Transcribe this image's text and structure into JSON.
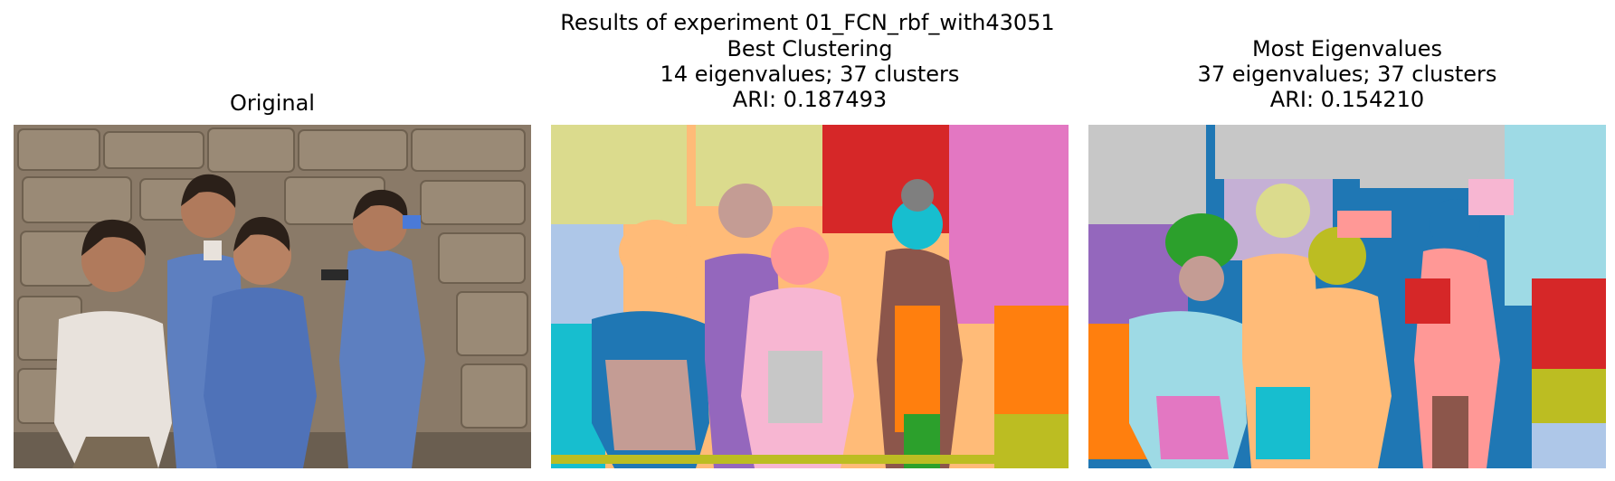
{
  "figure": {
    "suptitle": "Results of experiment 01_FCN_rbf_with43051"
  },
  "panels": [
    {
      "id": "original",
      "title_lines": [
        "Original"
      ],
      "image": "photo of four boys in blue school uniforms in front of a stone wall"
    },
    {
      "id": "best-clustering",
      "title_lines": [
        "Best Clustering",
        "14 eigenvalues; 37 clusters",
        "ARI: 0.187493"
      ],
      "image": "segmentation map"
    },
    {
      "id": "most-eigenvalues",
      "title_lines": [
        "Most Eigenvalues",
        "37 eigenvalues; 37 clusters",
        "ARI: 0.154210"
      ],
      "image": "segmentation map"
    }
  ],
  "colors": {
    "wall": "#8a7a68",
    "shirt": "#5d7fc0",
    "skin": "#b07a5c",
    "white": "#e8e2dc",
    "c_orange": "#ff7f0e",
    "c_lightorange": "#ffbb78",
    "c_blue": "#1f77b4",
    "c_lightblue": "#aec7e8",
    "c_green": "#2ca02c",
    "c_red": "#d62728",
    "c_pink": "#ff9896",
    "c_purple": "#9467bd",
    "c_lavender": "#c5b0d5",
    "c_brown": "#8c564b",
    "c_tan": "#c49c94",
    "c_magenta": "#e377c2",
    "c_lightpink": "#f7b6d2",
    "c_gray": "#c7c7c7",
    "c_olive": "#bcbd22",
    "c_khaki": "#dbdb8d",
    "c_cyan": "#17becf",
    "c_lightcyan": "#9edae5",
    "c_darkgray": "#7f7f7f"
  }
}
